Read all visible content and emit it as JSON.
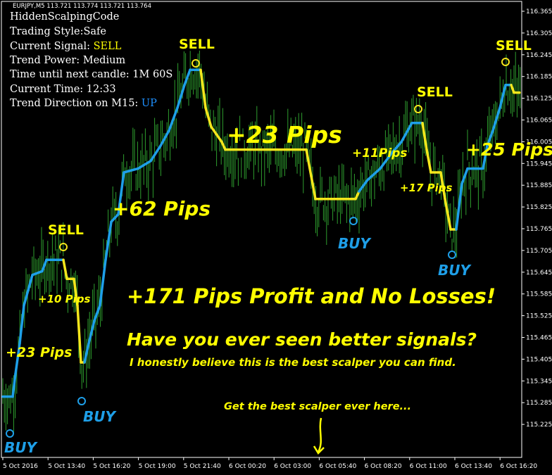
{
  "window": {
    "symbol_header": "EURJPY,M5  113.721 113.774 113.721 113.764"
  },
  "panel": {
    "indicator_name": "HiddenScalpingCode",
    "trading_style": "Trading Style:Safe",
    "current_signal_label": "Current Signal: ",
    "current_signal_value": "SELL",
    "trend_power": "Trend Power: Medium",
    "time_until_next": "Time until next candle: 1M 60S",
    "current_time": "Current Time: 12:33",
    "trend_direction_label": "Trend Direction on M15: ",
    "trend_direction_value": "UP"
  },
  "annotations": {
    "pips_23_top": "+23 Pips",
    "pips_62": "+62 Pips",
    "pips_11": "+11Pips",
    "pips_17": "+17 Pips",
    "pips_25": "+25 Pips",
    "pips_10": "+10 Pips",
    "pips_23_left": "+23 Pips",
    "headline": "+171 Pips Profit and No Losses!",
    "question": "Have you ever seen better signals?",
    "belief": "I honestly believe this is the best scalper you can find.",
    "cta": "Get the best scalper ever here..."
  },
  "signals": {
    "sell": "SELL",
    "buy": "BUY"
  },
  "colors": {
    "background": "#000000",
    "candles": "#2e9e2e",
    "indicator_up": "#1e9fe8",
    "indicator_down": "#f5e61c",
    "annotation_text": "#ffff00",
    "buy_text": "#1e9fe8",
    "text": "#ffffff"
  },
  "chart_data": {
    "type": "line",
    "y_ticks": [
      "116.365",
      "116.305",
      "116.245",
      "116.185",
      "116.125",
      "116.065",
      "116.005",
      "115.945",
      "115.885",
      "115.825",
      "115.765",
      "115.705",
      "115.645",
      "115.585",
      "115.525",
      "115.465",
      "115.405",
      "115.345",
      "115.285",
      "115.225"
    ],
    "x_ticks": [
      "5 Oct 2016",
      "5 Oct 13:40",
      "5 Oct 16:20",
      "5 Oct 19:00",
      "5 Oct 21:40",
      "6 Oct 00:20",
      "6 Oct 03:00",
      "6 Oct 05:40",
      "6 Oct 08:20",
      "6 Oct 11:00",
      "6 Oct 13:40",
      "6 Oct 16:20"
    ],
    "y_range": [
      115.2,
      116.4
    ],
    "indicator_points": [
      {
        "x": 4,
        "y": 115.36,
        "trend": "up"
      },
      {
        "x": 18,
        "y": 115.36,
        "trend": "up"
      },
      {
        "x": 22,
        "y": 115.42,
        "trend": "up"
      },
      {
        "x": 28,
        "y": 115.5,
        "trend": "up"
      },
      {
        "x": 34,
        "y": 115.6,
        "trend": "up"
      },
      {
        "x": 40,
        "y": 115.64,
        "trend": "up"
      },
      {
        "x": 46,
        "y": 115.68,
        "trend": "up"
      },
      {
        "x": 60,
        "y": 115.69,
        "trend": "up"
      },
      {
        "x": 66,
        "y": 115.72,
        "trend": "up"
      },
      {
        "x": 90,
        "y": 115.72,
        "trend": "down"
      },
      {
        "x": 95,
        "y": 115.67,
        "trend": "down"
      },
      {
        "x": 105,
        "y": 115.67,
        "trend": "down"
      },
      {
        "x": 110,
        "y": 115.6,
        "trend": "down"
      },
      {
        "x": 115,
        "y": 115.45,
        "trend": "down"
      },
      {
        "x": 120,
        "y": 115.45,
        "trend": "up"
      },
      {
        "x": 126,
        "y": 115.5,
        "trend": "up"
      },
      {
        "x": 134,
        "y": 115.56,
        "trend": "up"
      },
      {
        "x": 142,
        "y": 115.6,
        "trend": "up"
      },
      {
        "x": 150,
        "y": 115.72,
        "trend": "up"
      },
      {
        "x": 158,
        "y": 115.82,
        "trend": "up"
      },
      {
        "x": 168,
        "y": 115.84,
        "trend": "up"
      },
      {
        "x": 176,
        "y": 115.95,
        "trend": "up"
      },
      {
        "x": 196,
        "y": 115.96,
        "trend": "up"
      },
      {
        "x": 214,
        "y": 115.98,
        "trend": "up"
      },
      {
        "x": 228,
        "y": 116.02,
        "trend": "up"
      },
      {
        "x": 240,
        "y": 116.06,
        "trend": "up"
      },
      {
        "x": 252,
        "y": 116.12,
        "trend": "up"
      },
      {
        "x": 262,
        "y": 116.18,
        "trend": "up"
      },
      {
        "x": 270,
        "y": 116.22,
        "trend": "up"
      },
      {
        "x": 285,
        "y": 116.22,
        "trend": "down"
      },
      {
        "x": 292,
        "y": 116.12,
        "trend": "down"
      },
      {
        "x": 300,
        "y": 116.07,
        "trend": "down"
      },
      {
        "x": 315,
        "y": 116.03,
        "trend": "down"
      },
      {
        "x": 320,
        "y": 116.01,
        "trend": "down"
      },
      {
        "x": 435,
        "y": 116.01,
        "trend": "down"
      },
      {
        "x": 442,
        "y": 115.94,
        "trend": "down"
      },
      {
        "x": 448,
        "y": 115.88,
        "trend": "down"
      },
      {
        "x": 505,
        "y": 115.88,
        "trend": "down"
      },
      {
        "x": 510,
        "y": 115.9,
        "trend": "up"
      },
      {
        "x": 522,
        "y": 115.93,
        "trend": "up"
      },
      {
        "x": 540,
        "y": 115.96,
        "trend": "up"
      },
      {
        "x": 556,
        "y": 116.0,
        "trend": "up"
      },
      {
        "x": 570,
        "y": 116.03,
        "trend": "up"
      },
      {
        "x": 585,
        "y": 116.08,
        "trend": "up"
      },
      {
        "x": 600,
        "y": 116.08,
        "trend": "down"
      },
      {
        "x": 606,
        "y": 116.01,
        "trend": "down"
      },
      {
        "x": 612,
        "y": 115.95,
        "trend": "down"
      },
      {
        "x": 626,
        "y": 115.95,
        "trend": "down"
      },
      {
        "x": 632,
        "y": 115.88,
        "trend": "down"
      },
      {
        "x": 640,
        "y": 115.8,
        "trend": "down"
      },
      {
        "x": 648,
        "y": 115.8,
        "trend": "up"
      },
      {
        "x": 656,
        "y": 115.92,
        "trend": "up"
      },
      {
        "x": 664,
        "y": 115.96,
        "trend": "up"
      },
      {
        "x": 686,
        "y": 115.96,
        "trend": "up"
      },
      {
        "x": 692,
        "y": 116.02,
        "trend": "up"
      },
      {
        "x": 700,
        "y": 116.06,
        "trend": "up"
      },
      {
        "x": 710,
        "y": 116.12,
        "trend": "up"
      },
      {
        "x": 718,
        "y": 116.18,
        "trend": "up"
      },
      {
        "x": 726,
        "y": 116.18,
        "trend": "down"
      },
      {
        "x": 730,
        "y": 116.16,
        "trend": "down"
      },
      {
        "x": 738,
        "y": 116.16,
        "trend": "down"
      }
    ]
  }
}
